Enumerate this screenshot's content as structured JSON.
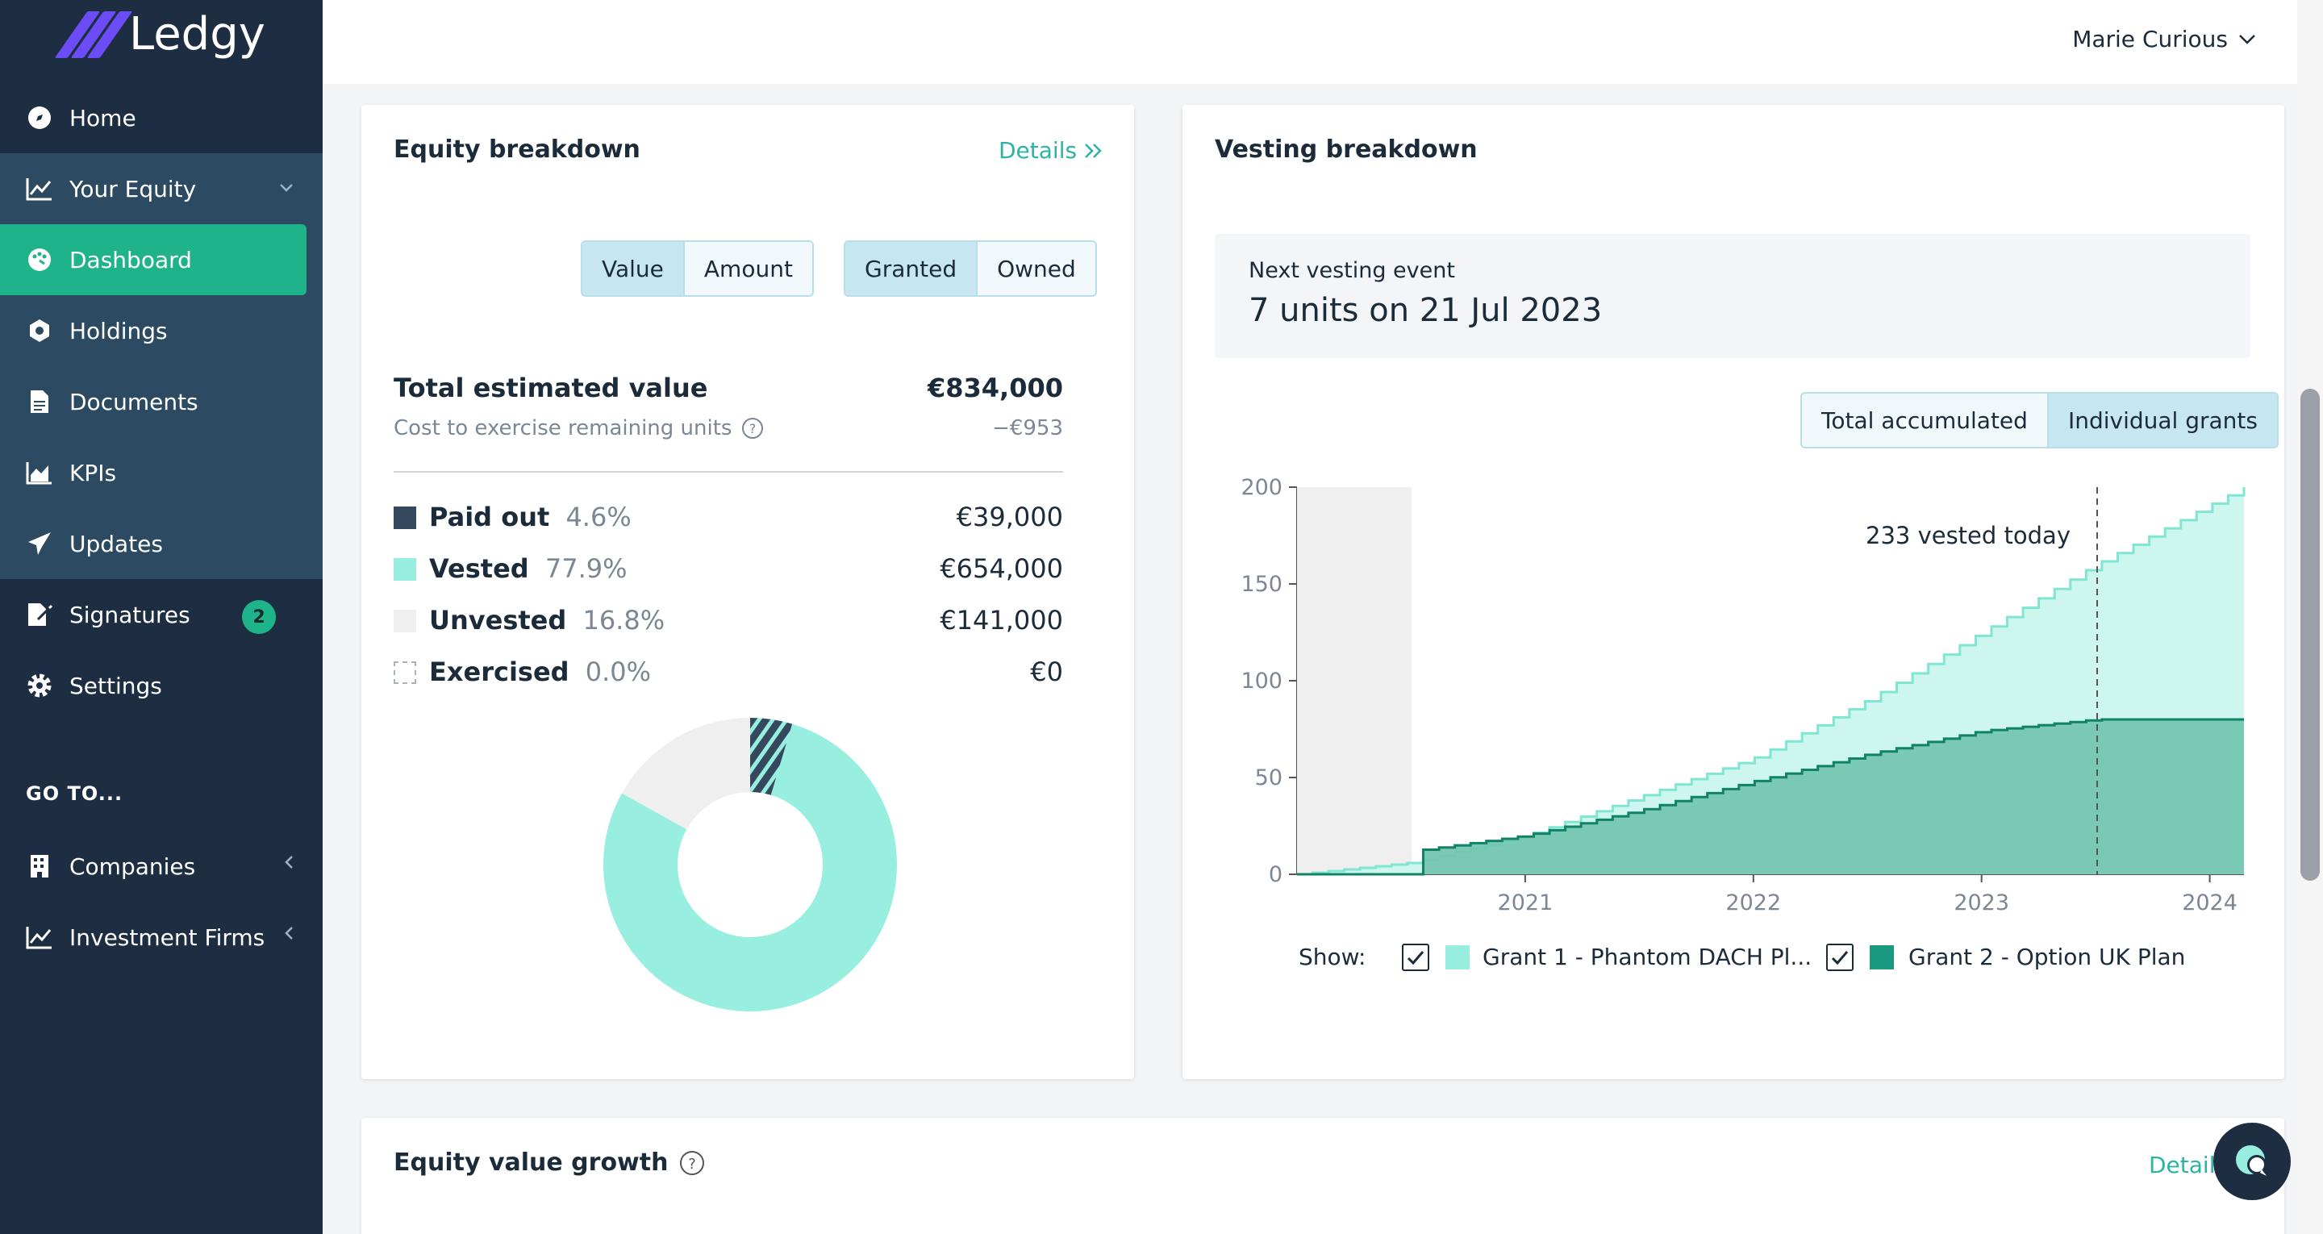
{
  "app": {
    "logo_text": "Ledgy",
    "brand_color": "#6b4cf6",
    "accent": "#1fb38a"
  },
  "header": {
    "user_name": "Marie Curious"
  },
  "sidebar": {
    "items": [
      {
        "label": "Home",
        "icon": "compass-icon"
      },
      {
        "label": "Your Equity",
        "icon": "chart-line-icon"
      },
      {
        "label": "Dashboard",
        "icon": "dashboard-icon",
        "active": true
      },
      {
        "label": "Holdings",
        "icon": "holdings-icon"
      },
      {
        "label": "Documents",
        "icon": "document-icon"
      },
      {
        "label": "KPIs",
        "icon": "area-chart-icon"
      },
      {
        "label": "Updates",
        "icon": "paper-plane-icon"
      },
      {
        "label": "Signatures",
        "icon": "signature-icon",
        "badge": "2"
      },
      {
        "label": "Settings",
        "icon": "gear-icon"
      }
    ],
    "goto_label": "GO TO...",
    "goto_items": [
      {
        "label": "Companies",
        "icon": "building-icon"
      },
      {
        "label": "Investment Firms",
        "icon": "chart-line-icon"
      }
    ]
  },
  "equity": {
    "title": "Equity breakdown",
    "details": "Details",
    "toggle1": [
      "Value",
      "Amount"
    ],
    "toggle2": [
      "Granted",
      "Owned"
    ],
    "total_label": "Total estimated value",
    "total_value": "€834,000",
    "cost_label": "Cost to exercise remaining units",
    "cost_value": "−€953",
    "rows": [
      {
        "label": "Paid out",
        "pct": "4.6%",
        "value": "€39,000",
        "color": "#34495e"
      },
      {
        "label": "Vested",
        "pct": "77.9%",
        "value": "€654,000",
        "color": "#98efdf"
      },
      {
        "label": "Unvested",
        "pct": "16.8%",
        "value": "€141,000",
        "color": "#efefef"
      },
      {
        "label": "Exercised",
        "pct": "0.0%",
        "value": "€0",
        "color": "#ffffff"
      }
    ]
  },
  "vesting": {
    "title": "Vesting breakdown",
    "next_label": "Next vesting event",
    "next_value": "7 units on 21 Jul 2023",
    "toggle": [
      "Total accumulated",
      "Individual grants"
    ],
    "today_label": "233 vested today",
    "show_label": "Show:",
    "legend": [
      {
        "label": "Grant 1 - Phantom DACH Pl...",
        "color": "#98efdf"
      },
      {
        "label": "Grant 2 - Option UK Plan",
        "color": "#1a9a80"
      }
    ]
  },
  "growth": {
    "title": "Equity value growth",
    "details": "Details"
  },
  "chart_data": [
    {
      "type": "pie",
      "categories": [
        "Paid out",
        "Vested",
        "Unvested",
        "Exercised"
      ],
      "values": [
        4.6,
        77.9,
        16.8,
        0.0
      ]
    },
    {
      "type": "area",
      "x_ticks": [
        "2021",
        "2022",
        "2023",
        "2024"
      ],
      "y_ticks": [
        0,
        50,
        100,
        150,
        200
      ],
      "ylim": [
        0,
        200
      ],
      "series": [
        {
          "name": "Grant 1 - Phantom DACH Pl...",
          "x": [
            2020.0,
            2020.5,
            2021.0,
            2021.5,
            2022.0,
            2022.5,
            2023.0,
            2023.5,
            2024.15
          ],
          "values": [
            0,
            6,
            20,
            40,
            60,
            90,
            125,
            160,
            200
          ]
        },
        {
          "name": "Grant 2 - Option UK Plan",
          "x": [
            2020.0,
            2020.5,
            2020.51,
            2021.0,
            2021.5,
            2022.0,
            2022.5,
            2023.0,
            2023.5,
            2024.15
          ],
          "values": [
            0,
            0,
            12,
            20,
            33,
            48,
            62,
            74,
            80,
            80
          ]
        }
      ]
    }
  ]
}
